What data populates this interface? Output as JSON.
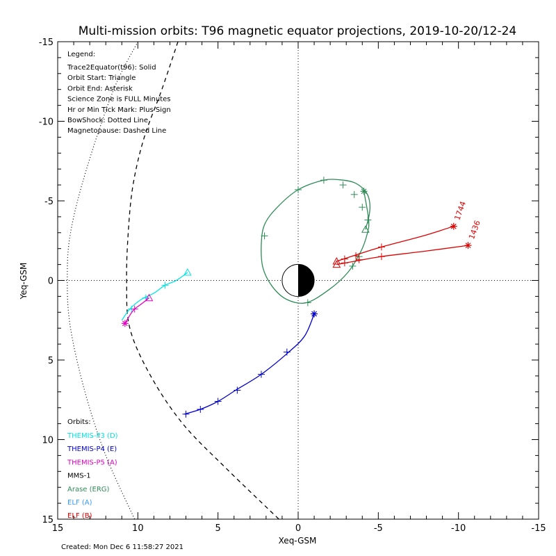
{
  "chart_data": {
    "type": "line",
    "title": "Multi-mission orbits: T96 magnetic equator projections, 2019-10-20/12-24",
    "xlabel": "Xeq-GSM",
    "ylabel": "Yeq-GSM",
    "xlim": [
      15,
      -15
    ],
    "ylim": [
      15,
      -15
    ],
    "x_ticks": [
      15,
      10,
      5,
      0,
      -5,
      -10,
      -15
    ],
    "y_ticks": [
      -15,
      -10,
      -5,
      0,
      5,
      10,
      15
    ],
    "legend_title": "Legend:",
    "legend_lines": [
      "Trace2Equator(t96): Solid",
      "Orbit Start: Triangle",
      "Orbit End: Asterisk",
      "Science Zone is FULL Minutes",
      "Hr or Min Tick Mark: Plus Sign",
      "BowShock: Dotted Line",
      "Magnetopause: Dashed Line"
    ],
    "orbits_title": "Orbits:",
    "orbit_legend": [
      {
        "label": "THEMIS-P3 (D)",
        "color": "#00e5e5"
      },
      {
        "label": "THEMIS-P4 (E)",
        "color": "#0000cc"
      },
      {
        "label": "THEMIS-P5 (A)",
        "color": "#e000c0"
      },
      {
        "label": "MMS-1",
        "color": "#000000"
      },
      {
        "label": "Arase (ERG)",
        "color": "#2e8b57"
      },
      {
        "label": "ELF (A)",
        "color": "#3399ff"
      },
      {
        "label": "ELF (B)",
        "color": "#dd0000"
      }
    ],
    "footer": "Created: Mon Dec  6 11:58:27 2021",
    "bow_shock": [
      [
        10,
        -15
      ],
      [
        11.5,
        -12
      ],
      [
        13.2,
        -7
      ],
      [
        14.2,
        -3
      ],
      [
        14.4,
        0
      ],
      [
        14.2,
        3
      ],
      [
        13.3,
        7
      ],
      [
        12,
        11
      ],
      [
        10.2,
        15
      ]
    ],
    "magnetopause": [
      [
        7.5,
        -15
      ],
      [
        8.5,
        -12
      ],
      [
        9.6,
        -9
      ],
      [
        10.3,
        -6
      ],
      [
        10.6,
        -3
      ],
      [
        10.7,
        0
      ],
      [
        10.5,
        3
      ],
      [
        9.2,
        6
      ],
      [
        7.2,
        9
      ],
      [
        4.5,
        11.8
      ],
      [
        1.2,
        15
      ]
    ],
    "series": [
      {
        "name": "THEMIS-P3 (D)",
        "color": "#00e5e5",
        "points": [
          [
            6.9,
            -0.5
          ],
          [
            7.6,
            0.0
          ],
          [
            8.3,
            0.3
          ],
          [
            9.0,
            0.8
          ],
          [
            9.8,
            1.2
          ],
          [
            10.5,
            1.8
          ],
          [
            11.0,
            2.5
          ]
        ],
        "ticks": [
          [
            8.3,
            0.3
          ],
          [
            9.5,
            1.1
          ],
          [
            10.4,
            1.8
          ]
        ],
        "start": [
          6.9,
          -0.5
        ],
        "end": null
      },
      {
        "name": "THEMIS-P4 (E)",
        "color": "#0000cc",
        "points": [
          [
            -1.0,
            2.1
          ],
          [
            -0.4,
            3.5
          ],
          [
            0.7,
            4.6
          ],
          [
            2.3,
            5.9
          ],
          [
            3.9,
            6.9
          ],
          [
            5.0,
            7.6
          ],
          [
            6.1,
            8.1
          ],
          [
            7.1,
            8.4
          ]
        ],
        "ticks": [
          [
            0.7,
            4.5
          ],
          [
            2.3,
            5.9
          ],
          [
            3.8,
            6.9
          ],
          [
            5.0,
            7.6
          ],
          [
            6.1,
            8.1
          ],
          [
            7.0,
            8.4
          ]
        ],
        "start": null,
        "end": [
          -1.0,
          2.1
        ]
      },
      {
        "name": "THEMIS-P5 (A)",
        "color": "#e000c0",
        "points": [
          [
            9.3,
            1.1
          ],
          [
            9.8,
            1.5
          ],
          [
            10.3,
            1.9
          ],
          [
            10.8,
            2.7
          ]
        ],
        "ticks": [
          [
            10.2,
            1.8
          ]
        ],
        "start": [
          9.3,
          1.1
        ],
        "end": [
          10.8,
          2.7
        ]
      },
      {
        "name": "Arase (ERG)",
        "color": "#2e8b57",
        "points": [
          [
            -4.2,
            -3.2
          ],
          [
            -4.45,
            -4.2
          ],
          [
            -4.45,
            -5.0
          ],
          [
            -4.2,
            -5.6
          ],
          [
            -3.6,
            -6.1
          ],
          [
            -2.8,
            -6.3
          ],
          [
            -1.6,
            -6.3
          ],
          [
            0.0,
            -5.7
          ],
          [
            1.3,
            -4.6
          ],
          [
            2.1,
            -3.5
          ],
          [
            2.3,
            -2.2
          ],
          [
            2.2,
            -0.8
          ],
          [
            1.6,
            0.4
          ],
          [
            0.7,
            1.2
          ],
          [
            -0.5,
            1.4
          ],
          [
            -1.9,
            0.6
          ],
          [
            -3.1,
            -0.5
          ],
          [
            -3.9,
            -1.8
          ],
          [
            -4.3,
            -2.9
          ],
          [
            -4.4,
            -3.8
          ],
          [
            -4.1,
            -5.6
          ]
        ],
        "ticks": [
          [
            0.0,
            -5.7
          ],
          [
            2.1,
            -2.8
          ],
          [
            -1.6,
            -6.3
          ],
          [
            -2.8,
            -6.0
          ],
          [
            -3.5,
            -5.4
          ],
          [
            -4.0,
            -4.6
          ],
          [
            -4.35,
            -3.8
          ],
          [
            -3.8,
            -1.5
          ],
          [
            -3.4,
            -0.9
          ],
          [
            -0.6,
            1.4
          ]
        ],
        "start": [
          -4.2,
          -3.2
        ],
        "end": [
          -4.1,
          -5.6
        ]
      },
      {
        "name": "ELF (B) 1744",
        "color": "#dd0000",
        "label": "1744",
        "points": [
          [
            -2.4,
            -1.2
          ],
          [
            -3.9,
            -1.7
          ],
          [
            -5.2,
            -2.1
          ],
          [
            -7.8,
            -2.8
          ],
          [
            -9.7,
            -3.4
          ]
        ],
        "ticks": [
          [
            -2.9,
            -1.35
          ],
          [
            -3.6,
            -1.55
          ],
          [
            -5.2,
            -2.1
          ]
        ],
        "start": [
          -2.4,
          -1.2
        ],
        "end": [
          -9.7,
          -3.4
        ]
      },
      {
        "name": "ELF (B) 1436",
        "color": "#dd0000",
        "label": "1436",
        "points": [
          [
            -2.4,
            -1.0
          ],
          [
            -3.5,
            -1.2
          ],
          [
            -5.2,
            -1.5
          ],
          [
            -8.0,
            -1.85
          ],
          [
            -10.6,
            -2.2
          ]
        ],
        "ticks": [
          [
            -2.9,
            -1.1
          ],
          [
            -3.8,
            -1.3
          ],
          [
            -5.2,
            -1.5
          ]
        ],
        "start": [
          -2.4,
          -1.0
        ],
        "end": [
          -10.6,
          -2.2
        ]
      }
    ]
  }
}
